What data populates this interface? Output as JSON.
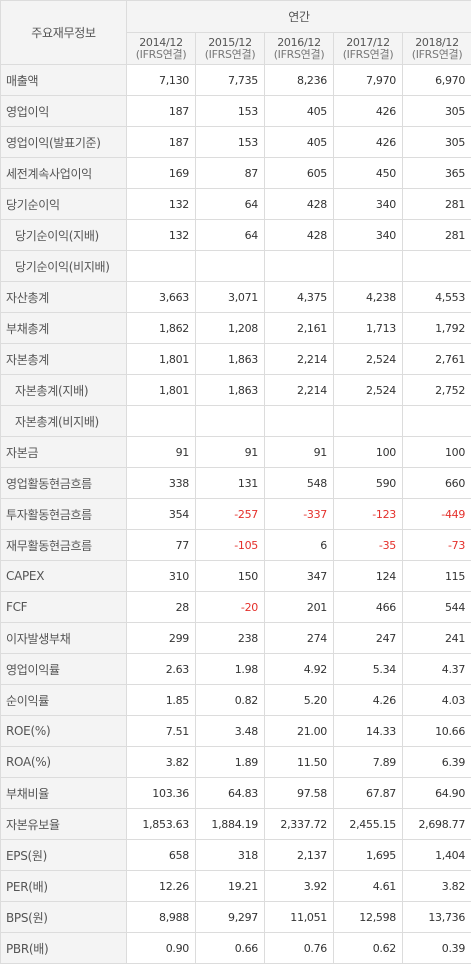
{
  "header": {
    "label": "주요재무정보",
    "group": "연간",
    "years": [
      {
        "year": "2014/12",
        "basis": "(IFRS연결)"
      },
      {
        "year": "2015/12",
        "basis": "(IFRS연결)"
      },
      {
        "year": "2016/12",
        "basis": "(IFRS연결)"
      },
      {
        "year": "2017/12",
        "basis": "(IFRS연결)"
      },
      {
        "year": "2018/12",
        "basis": "(IFRS연결)"
      }
    ]
  },
  "rows": [
    {
      "label": "매출액",
      "indent": false,
      "values": [
        "7,130",
        "7,735",
        "8,236",
        "7,970",
        "6,970"
      ]
    },
    {
      "label": "영업이익",
      "indent": false,
      "values": [
        "187",
        "153",
        "405",
        "426",
        "305"
      ]
    },
    {
      "label": "영업이익(발표기준)",
      "indent": false,
      "values": [
        "187",
        "153",
        "405",
        "426",
        "305"
      ]
    },
    {
      "label": "세전계속사업이익",
      "indent": false,
      "values": [
        "169",
        "87",
        "605",
        "450",
        "365"
      ]
    },
    {
      "label": "당기순이익",
      "indent": false,
      "values": [
        "132",
        "64",
        "428",
        "340",
        "281"
      ]
    },
    {
      "label": "당기순이익(지배)",
      "indent": true,
      "values": [
        "132",
        "64",
        "428",
        "340",
        "281"
      ]
    },
    {
      "label": "당기순이익(비지배)",
      "indent": true,
      "values": [
        "",
        "",
        "",
        "",
        ""
      ]
    },
    {
      "label": "자산총계",
      "indent": false,
      "values": [
        "3,663",
        "3,071",
        "4,375",
        "4,238",
        "4,553"
      ]
    },
    {
      "label": "부채총계",
      "indent": false,
      "values": [
        "1,862",
        "1,208",
        "2,161",
        "1,713",
        "1,792"
      ]
    },
    {
      "label": "자본총계",
      "indent": false,
      "values": [
        "1,801",
        "1,863",
        "2,214",
        "2,524",
        "2,761"
      ]
    },
    {
      "label": "자본총계(지배)",
      "indent": true,
      "values": [
        "1,801",
        "1,863",
        "2,214",
        "2,524",
        "2,752"
      ]
    },
    {
      "label": "자본총계(비지배)",
      "indent": true,
      "values": [
        "",
        "",
        "",
        "",
        ""
      ]
    },
    {
      "label": "자본금",
      "indent": false,
      "values": [
        "91",
        "91",
        "91",
        "100",
        "100"
      ]
    },
    {
      "label": "영업활동현금흐름",
      "indent": false,
      "values": [
        "338",
        "131",
        "548",
        "590",
        "660"
      ]
    },
    {
      "label": "투자활동현금흐름",
      "indent": false,
      "values": [
        "354",
        "-257",
        "-337",
        "-123",
        "-449"
      ]
    },
    {
      "label": "재무활동현금흐름",
      "indent": false,
      "values": [
        "77",
        "-105",
        "6",
        "-35",
        "-73"
      ]
    },
    {
      "label": "CAPEX",
      "indent": false,
      "values": [
        "310",
        "150",
        "347",
        "124",
        "115"
      ]
    },
    {
      "label": "FCF",
      "indent": false,
      "values": [
        "28",
        "-20",
        "201",
        "466",
        "544"
      ]
    },
    {
      "label": "이자발생부채",
      "indent": false,
      "values": [
        "299",
        "238",
        "274",
        "247",
        "241"
      ]
    },
    {
      "label": "영업이익률",
      "indent": false,
      "values": [
        "2.63",
        "1.98",
        "4.92",
        "5.34",
        "4.37"
      ]
    },
    {
      "label": "순이익률",
      "indent": false,
      "values": [
        "1.85",
        "0.82",
        "5.20",
        "4.26",
        "4.03"
      ]
    },
    {
      "label": "ROE(%)",
      "indent": false,
      "values": [
        "7.51",
        "3.48",
        "21.00",
        "14.33",
        "10.66"
      ]
    },
    {
      "label": "ROA(%)",
      "indent": false,
      "values": [
        "3.82",
        "1.89",
        "11.50",
        "7.89",
        "6.39"
      ]
    },
    {
      "label": "부채비율",
      "indent": false,
      "values": [
        "103.36",
        "64.83",
        "97.58",
        "67.87",
        "64.90"
      ]
    },
    {
      "label": "자본유보율",
      "indent": false,
      "values": [
        "1,853.63",
        "1,884.19",
        "2,337.72",
        "2,455.15",
        "2,698.77"
      ]
    },
    {
      "label": "EPS(원)",
      "indent": false,
      "values": [
        "658",
        "318",
        "2,137",
        "1,695",
        "1,404"
      ]
    },
    {
      "label": "PER(배)",
      "indent": false,
      "values": [
        "12.26",
        "19.21",
        "3.92",
        "4.61",
        "3.82"
      ]
    },
    {
      "label": "BPS(원)",
      "indent": false,
      "values": [
        "8,988",
        "9,297",
        "11,051",
        "12,598",
        "13,736"
      ]
    },
    {
      "label": "PBR(배)",
      "indent": false,
      "values": [
        "0.90",
        "0.66",
        "0.76",
        "0.62",
        "0.39"
      ]
    }
  ],
  "colors": {
    "negative": "#e4302b",
    "header_bg": "#f4f4f4",
    "border": "#dcdcdc"
  }
}
